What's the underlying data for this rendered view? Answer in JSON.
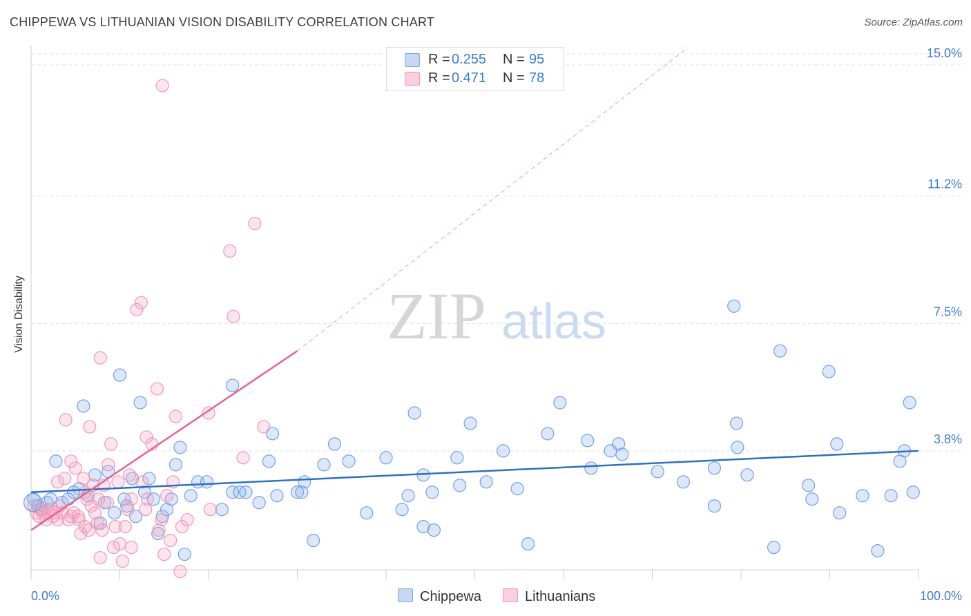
{
  "title": "CHIPPEWA VS LITHUANIAN VISION DISABILITY CORRELATION CHART",
  "source": "Source: ZipAtlas.com",
  "watermark": {
    "zip": "ZIP",
    "atlas": "atlas"
  },
  "legend": {
    "r_label": "R =",
    "n_label": "N =",
    "rows": [
      {
        "name": "Chippewa",
        "r": "0.255",
        "n": "95"
      },
      {
        "name": "Lithuanians",
        "r": "0.471",
        "n": "78"
      }
    ]
  },
  "chart_data": {
    "type": "scatter",
    "title": "CHIPPEWA VS LITHUANIAN VISION DISABILITY CORRELATION CHART",
    "xlabel": "",
    "ylabel": "Vision Disability",
    "xlim": [
      0,
      100
    ],
    "ylim": [
      0,
      15.6
    ],
    "x_tick_labels": [
      "0.0%",
      "100.0%"
    ],
    "y_ticks": [
      3.8,
      7.5,
      11.2,
      15.0
    ],
    "y_tick_labels": [
      "3.8%",
      "7.5%",
      "11.2%",
      "15.0%"
    ],
    "colors": {
      "Chippewa": "#6fa0e6",
      "Lithuanians": "#f098b6",
      "blue_line": "#2a6fcc",
      "pink_line": "#e8628f"
    },
    "series": [
      {
        "name": "Chippewa",
        "r": 0.255,
        "n": 95,
        "trend": {
          "x": [
            0,
            100
          ],
          "y": [
            2.6,
            3.8
          ]
        },
        "points": [
          [
            0.3,
            2.4
          ],
          [
            0.8,
            2.2
          ],
          [
            1.2,
            2.1
          ],
          [
            1.8,
            2.3
          ],
          [
            2.2,
            2.4
          ],
          [
            2.8,
            3.5
          ],
          [
            3.5,
            2.3
          ],
          [
            4.2,
            2.4
          ],
          [
            4.8,
            2.6
          ],
          [
            5.4,
            2.7
          ],
          [
            5.9,
            5.1
          ],
          [
            6.4,
            2.5
          ],
          [
            7.2,
            3.1
          ],
          [
            7.8,
            1.7
          ],
          [
            8.3,
            2.3
          ],
          [
            8.7,
            3.2
          ],
          [
            9.4,
            2.0
          ],
          [
            10.0,
            6.0
          ],
          [
            10.5,
            2.4
          ],
          [
            10.8,
            2.2
          ],
          [
            11.4,
            3.0
          ],
          [
            11.8,
            1.9
          ],
          [
            12.3,
            5.2
          ],
          [
            12.8,
            2.6
          ],
          [
            13.3,
            3.0
          ],
          [
            13.8,
            2.4
          ],
          [
            14.3,
            1.4
          ],
          [
            14.8,
            1.9
          ],
          [
            15.3,
            2.1
          ],
          [
            15.8,
            2.4
          ],
          [
            16.3,
            3.4
          ],
          [
            16.8,
            3.9
          ],
          [
            17.3,
            0.8
          ],
          [
            18.0,
            2.5
          ],
          [
            18.8,
            2.9
          ],
          [
            19.8,
            2.9
          ],
          [
            21.5,
            2.1
          ],
          [
            22.7,
            2.6
          ],
          [
            23.5,
            2.6
          ],
          [
            22.7,
            5.7
          ],
          [
            24.2,
            2.6
          ],
          [
            25.7,
            2.3
          ],
          [
            26.8,
            3.5
          ],
          [
            27.2,
            4.3
          ],
          [
            27.7,
            2.5
          ],
          [
            30.0,
            2.6
          ],
          [
            30.5,
            2.6
          ],
          [
            30.8,
            2.9
          ],
          [
            31.8,
            1.2
          ],
          [
            33.0,
            3.4
          ],
          [
            34.2,
            4.0
          ],
          [
            35.8,
            3.5
          ],
          [
            37.8,
            2.0
          ],
          [
            40.0,
            3.6
          ],
          [
            41.8,
            2.1
          ],
          [
            42.5,
            2.5
          ],
          [
            43.2,
            4.9
          ],
          [
            44.2,
            3.1
          ],
          [
            44.2,
            1.6
          ],
          [
            45.2,
            2.6
          ],
          [
            45.4,
            1.5
          ],
          [
            48.0,
            3.6
          ],
          [
            48.3,
            2.8
          ],
          [
            49.5,
            4.6
          ],
          [
            51.3,
            2.9
          ],
          [
            53.2,
            3.8
          ],
          [
            54.8,
            2.7
          ],
          [
            56.0,
            1.1
          ],
          [
            58.2,
            4.3
          ],
          [
            59.6,
            5.2
          ],
          [
            62.7,
            4.1
          ],
          [
            63.1,
            3.3
          ],
          [
            65.3,
            3.8
          ],
          [
            66.2,
            4.0
          ],
          [
            66.6,
            3.7
          ],
          [
            70.6,
            3.2
          ],
          [
            73.5,
            2.9
          ],
          [
            77.0,
            3.3
          ],
          [
            77.0,
            2.2
          ],
          [
            79.2,
            8.0
          ],
          [
            79.5,
            4.6
          ],
          [
            79.6,
            3.9
          ],
          [
            80.7,
            3.1
          ],
          [
            83.7,
            1.0
          ],
          [
            84.4,
            6.7
          ],
          [
            87.6,
            2.8
          ],
          [
            88.0,
            2.4
          ],
          [
            89.9,
            6.1
          ],
          [
            90.8,
            4.0
          ],
          [
            91.1,
            2.0
          ],
          [
            93.7,
            2.5
          ],
          [
            95.4,
            0.9
          ],
          [
            96.9,
            2.5
          ],
          [
            97.9,
            3.5
          ],
          [
            98.4,
            3.8
          ],
          [
            99.0,
            5.2
          ],
          [
            99.4,
            2.6
          ]
        ]
      },
      {
        "name": "Lithuanians",
        "r": 0.471,
        "n": 78,
        "trend": {
          "x": [
            0,
            30
          ],
          "y": [
            1.5,
            6.7
          ]
        },
        "trend_extension": {
          "x": [
            30,
            74
          ],
          "y": [
            6.7,
            15.5
          ]
        },
        "points": [
          [
            0.3,
            2.2
          ],
          [
            0.6,
            2.0
          ],
          [
            0.9,
            1.9
          ],
          [
            1.1,
            2.1
          ],
          [
            1.4,
            2.0
          ],
          [
            1.7,
            1.8
          ],
          [
            1.9,
            2.0
          ],
          [
            2.2,
            2.1
          ],
          [
            2.5,
            1.9
          ],
          [
            2.8,
            2.0
          ],
          [
            3.0,
            1.8
          ],
          [
            3.2,
            2.2
          ],
          [
            3.5,
            2.0
          ],
          [
            3.8,
            3.0
          ],
          [
            3.9,
            4.7
          ],
          [
            4.2,
            1.8
          ],
          [
            4.5,
            1.9
          ],
          [
            4.8,
            2.0
          ],
          [
            5.0,
            3.3
          ],
          [
            5.3,
            1.9
          ],
          [
            5.6,
            1.4
          ],
          [
            5.9,
            3.0
          ],
          [
            6.1,
            1.6
          ],
          [
            6.3,
            2.4
          ],
          [
            6.5,
            1.5
          ],
          [
            6.6,
            4.5
          ],
          [
            6.8,
            2.2
          ],
          [
            7.0,
            2.8
          ],
          [
            7.2,
            2.0
          ],
          [
            7.5,
            1.7
          ],
          [
            7.8,
            0.7
          ],
          [
            8.0,
            1.5
          ],
          [
            8.2,
            2.8
          ],
          [
            7.8,
            6.5
          ],
          [
            8.7,
            3.4
          ],
          [
            9.0,
            4.0
          ],
          [
            9.3,
            1.0
          ],
          [
            9.5,
            1.6
          ],
          [
            10.0,
            1.1
          ],
          [
            10.3,
            0.6
          ],
          [
            10.6,
            1.6
          ],
          [
            10.9,
            2.1
          ],
          [
            11.3,
            1.0
          ],
          [
            11.3,
            2.4
          ],
          [
            11.9,
            7.9
          ],
          [
            12.4,
            8.1
          ],
          [
            12.9,
            2.1
          ],
          [
            13.1,
            2.4
          ],
          [
            13.6,
            4.0
          ],
          [
            14.2,
            5.6
          ],
          [
            14.4,
            1.5
          ],
          [
            14.7,
            1.8
          ],
          [
            15.0,
            0.8
          ],
          [
            15.3,
            2.5
          ],
          [
            15.7,
            1.2
          ],
          [
            16.0,
            2.9
          ],
          [
            16.3,
            4.8
          ],
          [
            16.8,
            0.3
          ],
          [
            17.0,
            1.6
          ],
          [
            17.6,
            1.8
          ],
          [
            20.0,
            4.9
          ],
          [
            20.2,
            2.1
          ],
          [
            22.4,
            9.6
          ],
          [
            22.8,
            7.7
          ],
          [
            23.9,
            3.6
          ],
          [
            25.2,
            10.4
          ],
          [
            26.2,
            4.5
          ],
          [
            14.8,
            14.4
          ],
          [
            7.6,
            2.4
          ],
          [
            9.8,
            2.9
          ],
          [
            11.1,
            3.1
          ],
          [
            13.0,
            4.2
          ],
          [
            4.5,
            3.5
          ],
          [
            3.0,
            2.9
          ],
          [
            12.5,
            2.9
          ],
          [
            6.1,
            2.6
          ],
          [
            8.6,
            2.3
          ],
          [
            5.4,
            1.8
          ]
        ]
      }
    ]
  }
}
